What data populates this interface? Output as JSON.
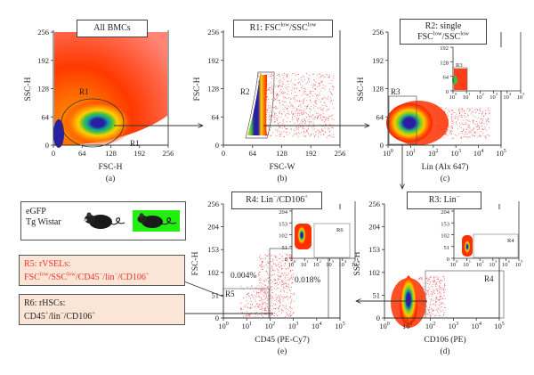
{
  "figure": {
    "panels": [
      {
        "id": "a",
        "label": "(a)",
        "title": "All BMCs",
        "x_axis": {
          "label": "FSC-H",
          "ticks": [
            "0",
            "64",
            "128",
            "192",
            "256"
          ]
        },
        "y_axis": {
          "label": "SSC-H",
          "ticks": [
            "0",
            "64",
            "128",
            "192",
            "256"
          ]
        },
        "gates": [
          "R1",
          "R1"
        ]
      },
      {
        "id": "b",
        "label": "(b)",
        "title_main": "R1: FSC",
        "title_sup1": "low",
        "title_mid": "/SSC",
        "title_sup2": "low",
        "x_axis": {
          "label": "FSC-W",
          "ticks": [
            "0",
            "64",
            "128",
            "192",
            "256"
          ]
        },
        "y_axis": {
          "label": "FSC-H",
          "ticks": [
            "0",
            "64",
            "128",
            "192",
            "256"
          ]
        },
        "gates": [
          "R2"
        ]
      },
      {
        "id": "c",
        "label": "(c)",
        "title_line1": "R2: single",
        "title_main": "FSC",
        "title_sup1": "low",
        "title_mid": "/SSC",
        "title_sup2": "low",
        "x_axis": {
          "label": "Lin (Alx 647)",
          "ticks": [
            "10",
            "10",
            "10",
            "10",
            "10",
            "10"
          ],
          "exponents": [
            "0",
            "1",
            "2",
            "3",
            "4",
            "5"
          ]
        },
        "y_axis": {
          "label": "SSC-H",
          "ticks": [
            "0",
            "64",
            "128",
            "192",
            "256"
          ]
        },
        "gates": [
          "R3"
        ],
        "inset": {
          "y_ticks": [
            "0",
            "64",
            "128",
            "192"
          ],
          "gate": "R3"
        }
      },
      {
        "id": "d",
        "label": "(d)",
        "title_main": "R3: Lin",
        "title_sup": "−",
        "x_axis": {
          "label": "CD106 (PE)",
          "ticks": [
            "10",
            "10",
            "10",
            "10",
            "10",
            "10"
          ],
          "exponents": [
            "0",
            "1",
            "2",
            "3",
            "4",
            "5"
          ]
        },
        "y_axis": {
          "label": "SSC-H",
          "ticks": [
            "0",
            "51",
            "102",
            "153",
            "204",
            "256"
          ]
        },
        "gates": [
          "R4"
        ],
        "inset": {
          "y_ticks": [
            "0",
            "51",
            "102",
            "153",
            "204"
          ],
          "gate": "R4"
        }
      },
      {
        "id": "e",
        "label": "(e)",
        "title_main": "R4: Lin",
        "title_sup1": "−",
        "title_mid": "/CD106",
        "title_sup2": "+",
        "x_axis": {
          "label": "CD45 (PE-Cy7)",
          "ticks": [
            "10",
            "10",
            "10",
            "10",
            "10",
            "10"
          ],
          "exponents": [
            "0",
            "1",
            "2",
            "3",
            "4",
            "5"
          ]
        },
        "y_axis": {
          "label": "FSC-H",
          "ticks": [
            "0",
            "51",
            "102",
            "153",
            "204",
            "256"
          ]
        },
        "gates": [
          "R5"
        ],
        "percentages": [
          "0.004%",
          "0.018%"
        ],
        "inset": {
          "y_ticks": [
            "0",
            "51",
            "102",
            "153",
            "204"
          ],
          "gate": "R6"
        }
      }
    ],
    "mouse_box": {
      "line1": "eGFP",
      "line2": "Tg Wistar",
      "icons": [
        "mouse-icon",
        "gfp-mouse-icon"
      ],
      "highlight_color": "#22ee11"
    },
    "result_boxes": [
      {
        "id": "R5",
        "title": "R5: rVSELs:",
        "color": "#e8322b",
        "parts": [
          [
            "FSC",
            ""
          ],
          [
            "low",
            "sup"
          ],
          [
            "/SSC",
            ""
          ],
          [
            "low",
            "sup"
          ],
          [
            "/CD45",
            ""
          ],
          [
            "−",
            "sup"
          ],
          [
            "/lin",
            ""
          ],
          [
            "−",
            "sup"
          ],
          [
            "/CD106",
            ""
          ],
          [
            "+",
            "sup"
          ]
        ]
      },
      {
        "id": "R6",
        "title": "R6: rHSCs:",
        "color": "#222222",
        "parts": [
          [
            "CD45",
            ""
          ],
          [
            "+",
            "sup"
          ],
          [
            "/lin",
            ""
          ],
          [
            "−",
            "sup"
          ],
          [
            "/CD106",
            ""
          ],
          [
            "+",
            "sup"
          ]
        ]
      }
    ],
    "colors": {
      "box_fill": "#fbe5d6",
      "density_low": "#ff1a00",
      "density_mid": "#ffd000",
      "density_high": "#20c040",
      "density_peak": "#2a1fa0"
    }
  }
}
